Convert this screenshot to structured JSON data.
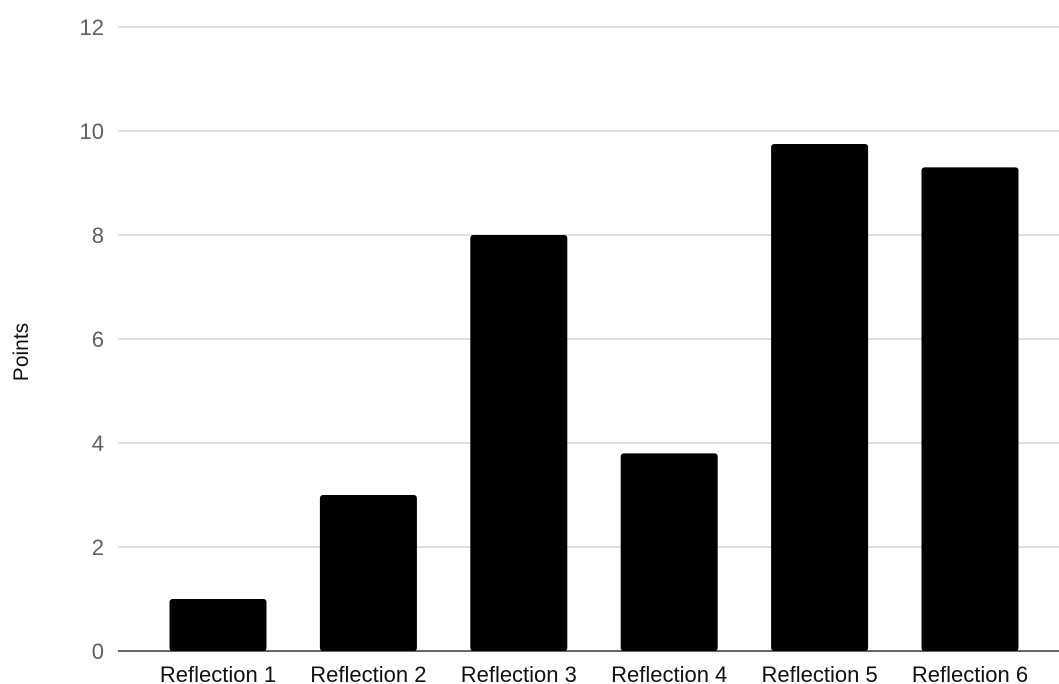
{
  "chart_data": {
    "type": "bar",
    "categories": [
      "Reflection 1",
      "Reflection 2",
      "Reflection 3",
      "Reflection 4",
      "Reflection 5",
      "Reflection 6"
    ],
    "values": [
      1,
      3,
      8,
      3.8,
      9.75,
      9.3
    ],
    "title": "",
    "xlabel": "",
    "ylabel": "Points",
    "ylim": [
      0,
      12
    ],
    "yticks": [
      0,
      2,
      4,
      6,
      8,
      10,
      12
    ],
    "grid": true,
    "legend": "none",
    "bar_color": "#000000"
  }
}
